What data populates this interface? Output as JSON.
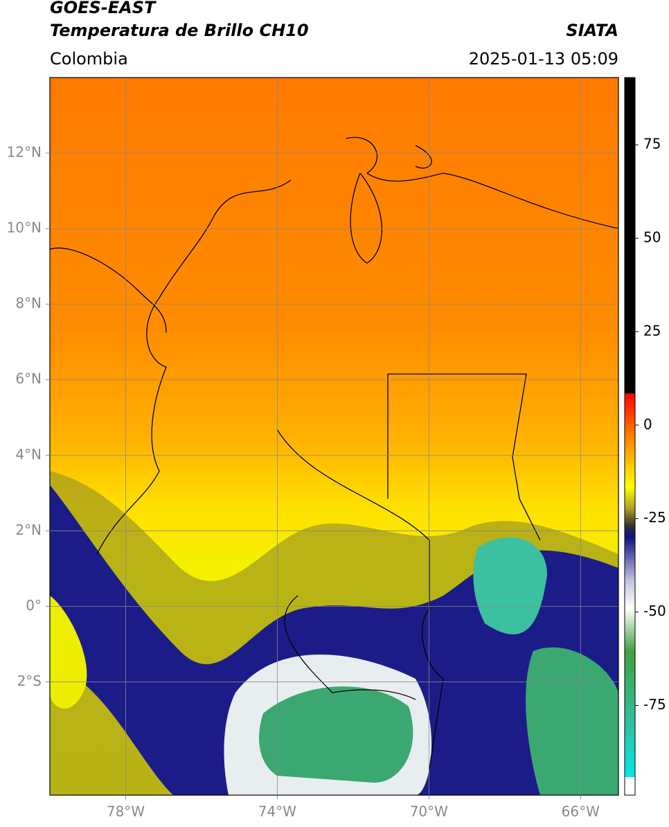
{
  "header": {
    "satellite": "GOES-EAST",
    "product": "Temperatura de Brillo CH10",
    "region": "Colombia",
    "source": "SIATA",
    "timestamp": "2025-01-13 05:09"
  },
  "map": {
    "xlim": [
      -80,
      -65
    ],
    "ylim": [
      -5,
      14
    ],
    "xticks": [
      {
        "value": -78,
        "label": "78°W"
      },
      {
        "value": -74,
        "label": "74°W"
      },
      {
        "value": -70,
        "label": "70°W"
      },
      {
        "value": -66,
        "label": "66°W"
      }
    ],
    "yticks": [
      {
        "value": 12,
        "label": "12°N"
      },
      {
        "value": 10,
        "label": "10°N"
      },
      {
        "value": 8,
        "label": "8°N"
      },
      {
        "value": 6,
        "label": "6°N"
      },
      {
        "value": 4,
        "label": "4°N"
      },
      {
        "value": 2,
        "label": "2°N"
      },
      {
        "value": 0,
        "label": "0°"
      },
      {
        "value": -2,
        "label": "2°S"
      }
    ],
    "grid": true
  },
  "colorbar": {
    "lim": [
      -99,
      93
    ],
    "ticks": [
      75,
      50,
      25,
      0,
      -25,
      -50,
      -75
    ]
  }
}
